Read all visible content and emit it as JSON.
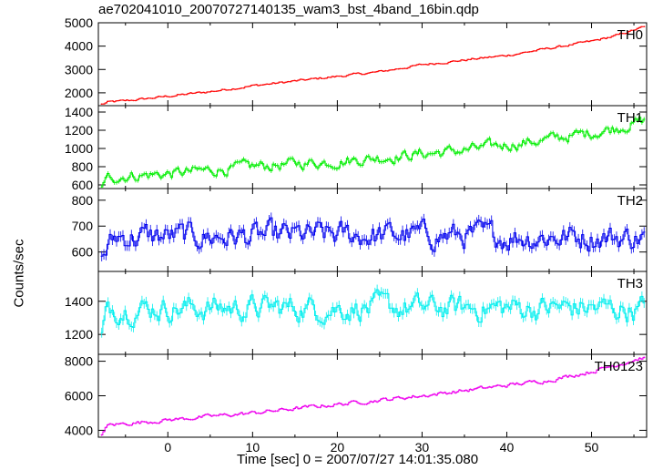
{
  "title": "ae702041010_20070727140135_wam3_bst_4band_16bin.qdp",
  "xlabel": "Time [sec] 0 = 2007/07/27 14:01:35.080",
  "ylabel": "Counts/sec",
  "chart_data": {
    "type": "line",
    "x_range": [
      -8.2,
      56.5
    ],
    "x_ticks": [
      0,
      10,
      20,
      30,
      40,
      50
    ],
    "x_sample_step": 0.25,
    "panels": [
      {
        "name": "TH0",
        "color": "#ff0000",
        "ylim": [
          1450,
          5000
        ],
        "y_ticks": [
          2000,
          3000,
          4000,
          5000
        ],
        "trend_points": [
          [
            -7.8,
            1500
          ],
          [
            -7,
            1600
          ],
          [
            -5,
            1650
          ],
          [
            0,
            1850
          ],
          [
            5,
            2050
          ],
          [
            10,
            2300
          ],
          [
            15,
            2500
          ],
          [
            20,
            2700
          ],
          [
            25,
            2900
          ],
          [
            30,
            3200
          ],
          [
            35,
            3400
          ],
          [
            40,
            3600
          ],
          [
            45,
            3900
          ],
          [
            50,
            4200
          ],
          [
            53,
            4450
          ],
          [
            56,
            4800
          ]
        ],
        "noise": 40,
        "error": 60
      },
      {
        "name": "TH1",
        "color": "#00ee00",
        "ylim": [
          560,
          1470
        ],
        "y_ticks": [
          600,
          800,
          1000,
          1200,
          1400
        ],
        "trend_points": [
          [
            -7.8,
            580
          ],
          [
            -7,
            680
          ],
          [
            -5,
            700
          ],
          [
            0,
            720
          ],
          [
            5,
            760
          ],
          [
            10,
            800
          ],
          [
            15,
            830
          ],
          [
            20,
            860
          ],
          [
            25,
            900
          ],
          [
            30,
            940
          ],
          [
            35,
            980
          ],
          [
            40,
            1040
          ],
          [
            45,
            1100
          ],
          [
            50,
            1170
          ],
          [
            53,
            1230
          ],
          [
            56,
            1300
          ]
        ],
        "noise": 50,
        "error": 50
      },
      {
        "name": "TH2",
        "color": "#0000ee",
        "ylim": [
          525,
          845
        ],
        "y_ticks": [
          600,
          700,
          800
        ],
        "trend_points": [
          [
            -8,
            580
          ],
          [
            -6,
            660
          ],
          [
            0,
            660
          ],
          [
            10,
            660
          ],
          [
            20,
            665
          ],
          [
            30,
            665
          ],
          [
            40,
            660
          ],
          [
            50,
            660
          ],
          [
            56,
            655
          ]
        ],
        "noise": 40,
        "error": 40
      },
      {
        "name": "TH3",
        "color": "#00eeee",
        "ylim": [
          1080,
          1580
        ],
        "y_ticks": [
          1200,
          1400
        ],
        "trend_points": [
          [
            -8,
            1150
          ],
          [
            -7,
            1360
          ],
          [
            0,
            1360
          ],
          [
            10,
            1360
          ],
          [
            20,
            1360
          ],
          [
            30,
            1360
          ],
          [
            40,
            1360
          ],
          [
            50,
            1360
          ],
          [
            56,
            1350
          ]
        ],
        "noise": 60,
        "error": 60
      },
      {
        "name": "TH0123",
        "color": "#ee00ee",
        "ylim": [
          3600,
          8400
        ],
        "y_ticks": [
          4000,
          6000,
          8000
        ],
        "trend_points": [
          [
            -7.8,
            3800
          ],
          [
            -7,
            4300
          ],
          [
            0,
            4600
          ],
          [
            10,
            5000
          ],
          [
            20,
            5500
          ],
          [
            30,
            6000
          ],
          [
            40,
            6600
          ],
          [
            45,
            6900
          ],
          [
            50,
            7400
          ],
          [
            53,
            7800
          ],
          [
            56,
            8200
          ]
        ],
        "noise": 90,
        "error": 110
      }
    ]
  }
}
